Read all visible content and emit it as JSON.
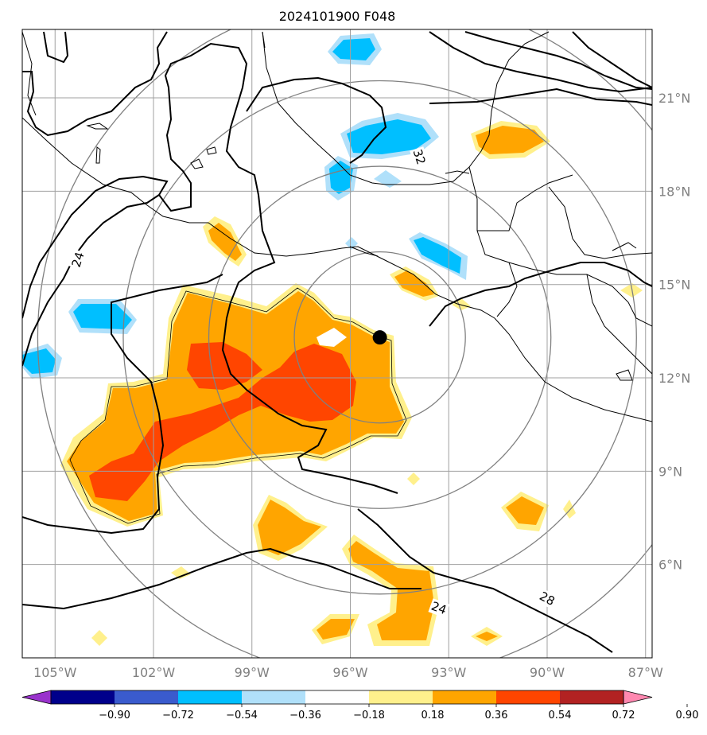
{
  "title": "2024101900 F048",
  "map": {
    "lon_min": -106,
    "lon_max": -86.8,
    "lat_min": 3.0,
    "lat_max": 23.2,
    "lon_ticks": [
      {
        "value": -105,
        "label": "105°W"
      },
      {
        "value": -102,
        "label": "102°W"
      },
      {
        "value": -99,
        "label": "99°W"
      },
      {
        "value": -96,
        "label": "96°W"
      },
      {
        "value": -93,
        "label": "93°W"
      },
      {
        "value": -90,
        "label": "90°W"
      },
      {
        "value": -87,
        "label": "87°W"
      }
    ],
    "lat_ticks": [
      {
        "value": 21,
        "label": "21°N"
      },
      {
        "value": 18,
        "label": "18°N"
      },
      {
        "value": 15,
        "label": "15°N"
      },
      {
        "value": 12,
        "label": "12°N"
      },
      {
        "value": 9,
        "label": "9°N"
      },
      {
        "value": 6,
        "label": "6°N"
      }
    ],
    "center": {
      "lon": -95.1,
      "lat": 13.3
    },
    "range_rings_deg": [
      2.75,
      5.5,
      8.25,
      11.0
    ],
    "contour_labels": [
      {
        "text": "24",
        "lon": -104.3,
        "lat": 15.8,
        "angle": -72
      },
      {
        "text": "32",
        "lon": -93.9,
        "lat": 19.1,
        "angle": 72
      },
      {
        "text": "24",
        "lon": -93.3,
        "lat": 4.6,
        "angle": 20
      },
      {
        "text": "28",
        "lon": -90.0,
        "lat": 4.9,
        "angle": 28
      }
    ]
  },
  "colorbar": {
    "ticks": [
      "−0.90",
      "−0.72",
      "−0.54",
      "−0.36",
      "−0.18",
      "0.18",
      "0.36",
      "0.54",
      "0.72",
      "0.90"
    ],
    "colors": [
      "#9932cc",
      "#00008b",
      "#3a5bcd",
      "#00bfff",
      "#b0e0fa",
      "#ffffff",
      "#fff08c",
      "#ffa500",
      "#ff4500",
      "#b22222",
      "#ff88b0"
    ]
  }
}
